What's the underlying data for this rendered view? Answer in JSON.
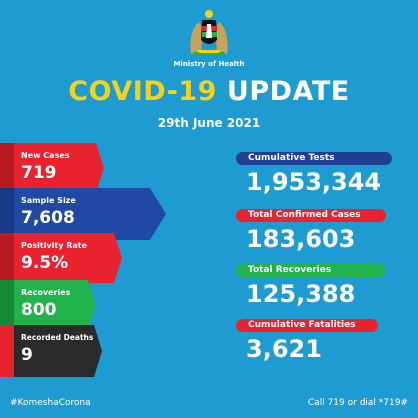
{
  "header": {
    "ministry": "Ministry of Health",
    "title_part1": "COVID-19",
    "title_part2": "UPDATE",
    "date": "29th June 2021"
  },
  "left_stats": [
    {
      "label": "New Cases",
      "value": "719",
      "color": "#e8232f"
    },
    {
      "label": "Sample Size",
      "value": "7,608",
      "color": "#2049a5"
    },
    {
      "label": "Positivity Rate",
      "value": "9.5%",
      "color": "#e8232f"
    },
    {
      "label": "Recoveries",
      "value": "800",
      "color": "#22b24c"
    },
    {
      "label": "Recorded Deaths",
      "value": "9",
      "color": "#2a2a2a"
    }
  ],
  "right_stats": [
    {
      "label": "Cumulative Tests",
      "value": "1,953,344",
      "color": "#1f3f94"
    },
    {
      "label": "Total Confirmed Cases",
      "value": "183,603",
      "color": "#e8232f"
    },
    {
      "label": "Total Recoveries",
      "value": "125,388",
      "color": "#22b24c"
    },
    {
      "label": "Cumulative Fatalities",
      "value": "3,621",
      "color": "#e8232f"
    }
  ],
  "footer": {
    "hashtag": "#KomeshaCorona",
    "call": "Call 719 or dial *719#"
  },
  "colors": {
    "background": "#1e9cd1",
    "title_accent": "#f7d117"
  }
}
